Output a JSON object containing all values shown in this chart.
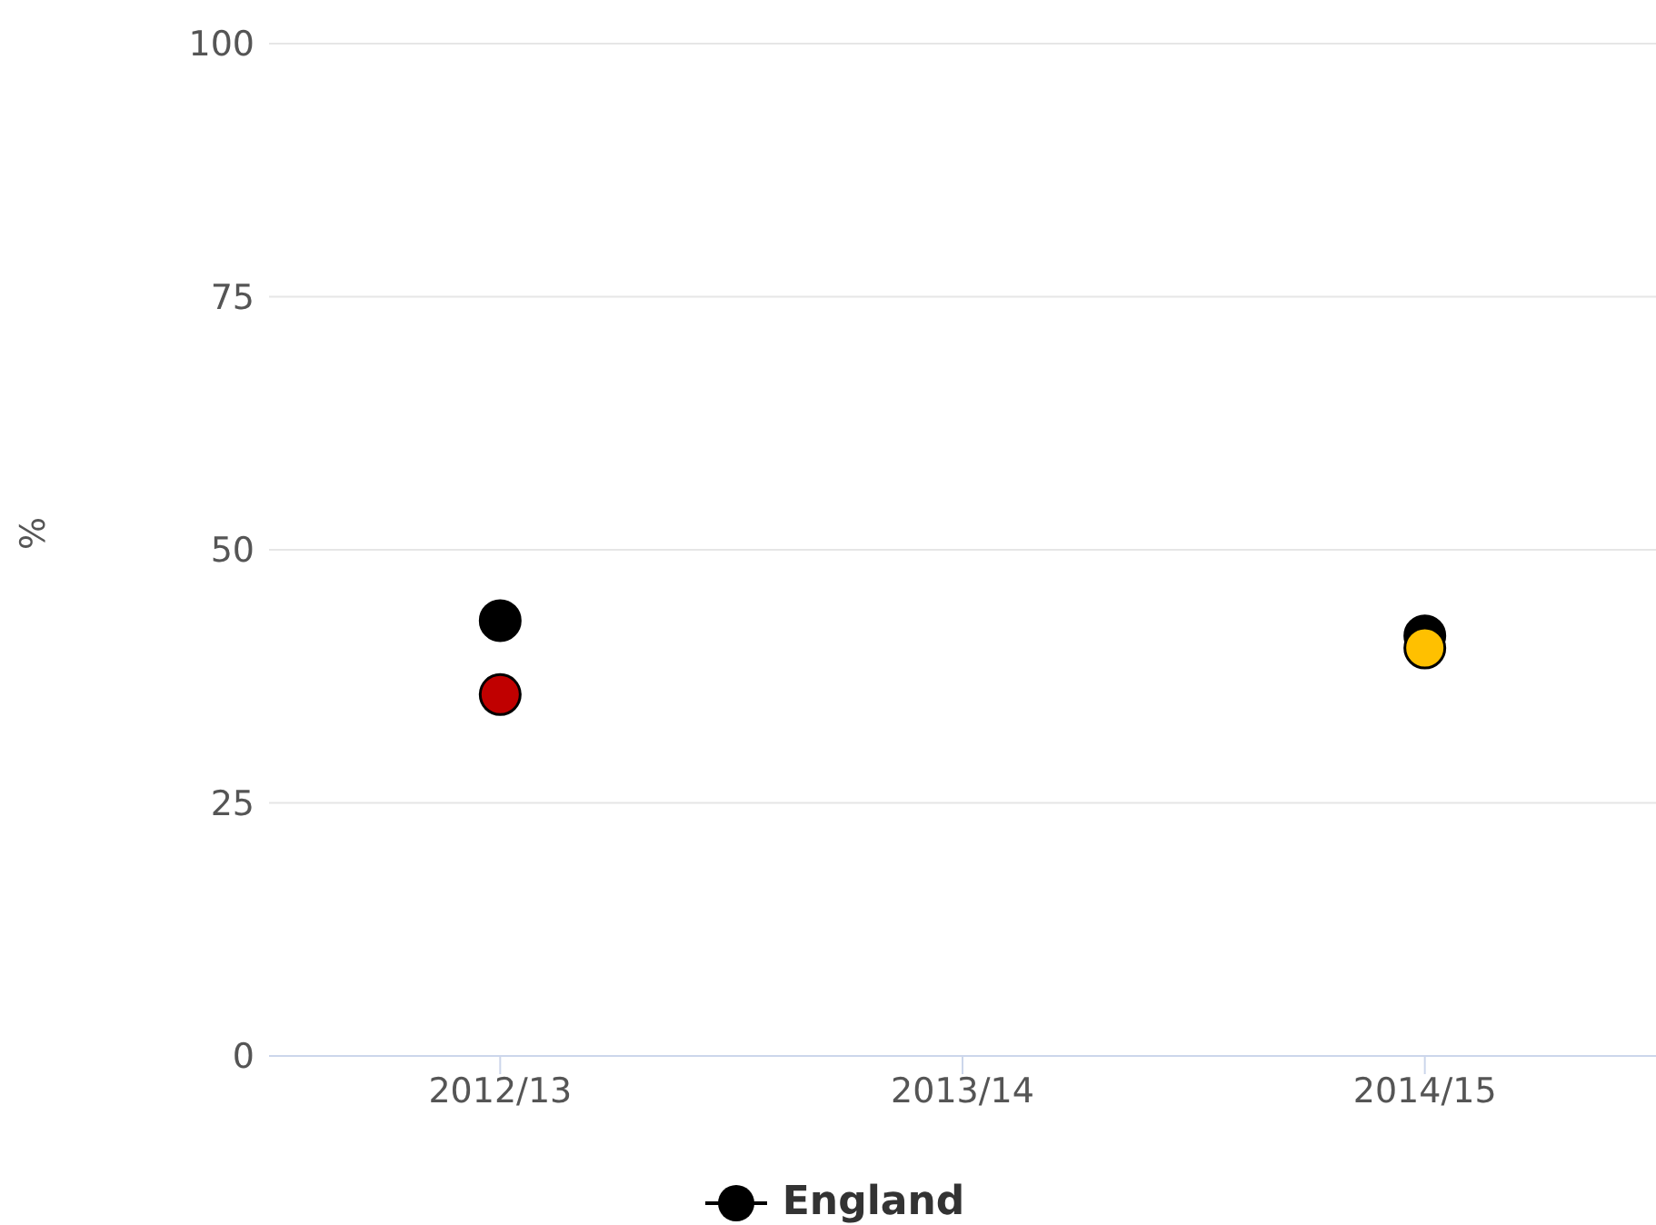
{
  "chart_data": {
    "type": "scatter",
    "ylabel": "%",
    "categories": [
      "2012/13",
      "2013/14",
      "2014/15"
    ],
    "series": [
      {
        "name": "England",
        "color": "#000000",
        "values": [
          43,
          null,
          41.5
        ]
      },
      {
        "colors": [
          "#c00000",
          null,
          "#ffc000"
        ],
        "values": [
          35.7,
          null,
          40.3
        ]
      }
    ],
    "ylim": [
      0,
      100
    ],
    "yticks": [
      0,
      25,
      50,
      75,
      100
    ],
    "grid": "y",
    "legend": "bottom",
    "marker": "circle"
  }
}
